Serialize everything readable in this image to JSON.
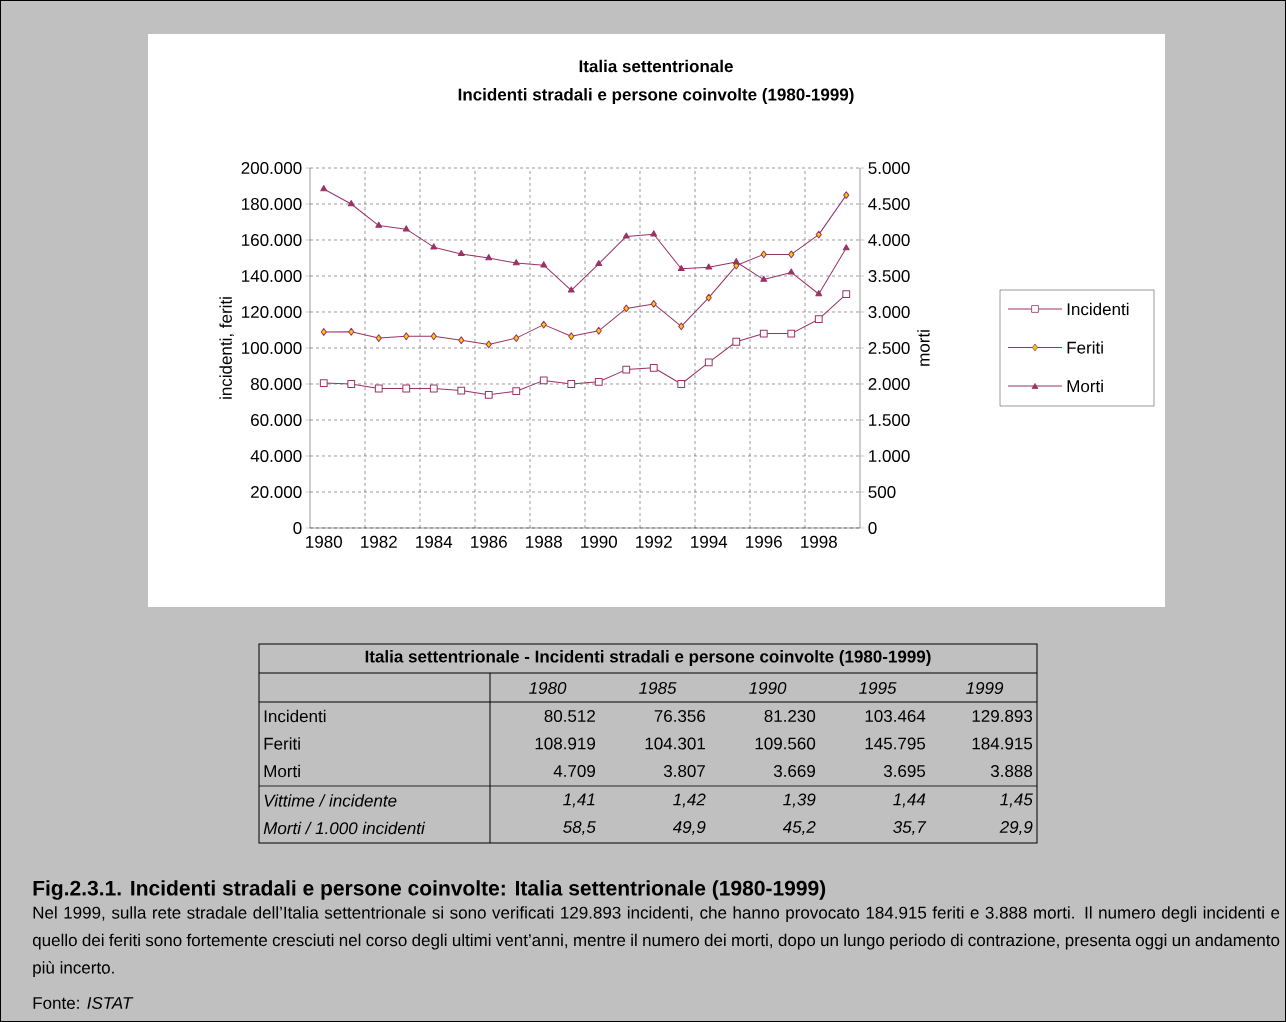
{
  "chart_data": {
    "type": "line",
    "title": "Italia settentrionale",
    "subtitle": "Incidenti stradali e persone coinvolte (1980-1999)",
    "ylabel": "incidenti, feriti",
    "y2label": "morti",
    "categories": [
      "1980",
      null,
      "1982",
      null,
      "1984",
      null,
      "1986",
      null,
      "1988",
      null,
      "1990",
      null,
      "1992",
      null,
      "1994",
      null,
      "1996",
      null,
      "1998",
      null
    ],
    "series": [
      {
        "name": "Incidenti",
        "color": "#993366",
        "marker": "square",
        "values": [
          80512,
          80000,
          77500,
          77500,
          77500,
          76356,
          74000,
          76000,
          82000,
          80000,
          81230,
          88000,
          89000,
          80000,
          92000,
          103464,
          108000,
          108000,
          116000,
          129893
        ]
      },
      {
        "name": "Feriti",
        "color": "#993366",
        "marker": "diamond",
        "values": [
          108919,
          109000,
          105500,
          106500,
          106500,
          104301,
          102000,
          105500,
          113000,
          106500,
          109560,
          122000,
          124500,
          112000,
          128000,
          145795,
          152000,
          152000,
          163000,
          184915
        ]
      },
      {
        "name": "Morti",
        "color": "#993366",
        "marker": "triangle",
        "axis": "y2",
        "values": [
          4709,
          4500,
          4200,
          4150,
          3900,
          3807,
          3750,
          3680,
          3650,
          3300,
          3669,
          4050,
          4080,
          3600,
          3620,
          3695,
          3450,
          3550,
          3250,
          3888
        ]
      }
    ],
    "ylim": [
      0,
      200000
    ],
    "yticks": [
      {
        "value": 0,
        "label": "0"
      },
      {
        "value": 20000,
        "label": "20.000"
      },
      {
        "value": 40000,
        "label": "40.000"
      },
      {
        "value": 60000,
        "label": "60.000"
      },
      {
        "value": 80000,
        "label": "80.000"
      },
      {
        "value": 100000,
        "label": "100.000"
      },
      {
        "value": 120000,
        "label": "120.000"
      },
      {
        "value": 140000,
        "label": "140.000"
      },
      {
        "value": 160000,
        "label": "160.000"
      },
      {
        "value": 180000,
        "label": "180.000"
      },
      {
        "value": 200000,
        "label": "200.000"
      }
    ],
    "y2lim": [
      0,
      5000
    ],
    "y2ticks": [
      0,
      500,
      {
        "value": 1000,
        "label": "1.000"
      },
      {
        "value": 1500,
        "label": "1.500"
      },
      {
        "value": 2000,
        "label": "2.000"
      },
      {
        "value": 2500,
        "label": "2.500"
      },
      {
        "value": 3000,
        "label": "3.000"
      },
      {
        "value": 3500,
        "label": "3.500"
      },
      {
        "value": 4000,
        "label": "4.000"
      },
      {
        "value": 4500,
        "label": "4.500"
      },
      {
        "value": 5000,
        "label": "5.000"
      }
    ],
    "grid": true,
    "legend": "right",
    "line_style": "solid",
    "annotations": [
      "Italia settentrionale - Incidenti stradali e persone coinvolte (1980-1999)",
      "1980",
      "1985",
      "1990",
      "1995",
      "1999",
      "Incidenti",
      "80.512",
      "76.356",
      "81.230",
      "103.464",
      "129.893",
      "Feriti",
      "108.919",
      "104.301",
      "109.560",
      "145.795",
      "184.915",
      "Morti",
      "4.709",
      "3.807",
      "3.669",
      "3.695",
      "3.888",
      "Vittime / incidente",
      "1,41",
      "1,42",
      "1,39",
      "1,44",
      "1,45",
      "Morti / 1.000 incidenti",
      "58,5",
      "49,9",
      "45,2",
      "35,7",
      "29,9",
      "Fig.2.3.1. Incidenti stradali e persone coinvolte: Italia settentrionale (1980-1999)",
      "Nel 1999, sulla rete stradale dell’Italia settentrionale si sono verificati 129.893 incidenti, che hanno provocato 184.915 feriti e 3.888 morti. Il numero degli incidenti e quello dei feriti sono fortemente cresciuti nel corso degli ultimi vent’anni, mentre il numero dei morti, dopo un lungo periodo di contrazione, presenta oggi un andamento più incerto.",
      "Fonte: *ISTAT*"
    ]
  }
}
